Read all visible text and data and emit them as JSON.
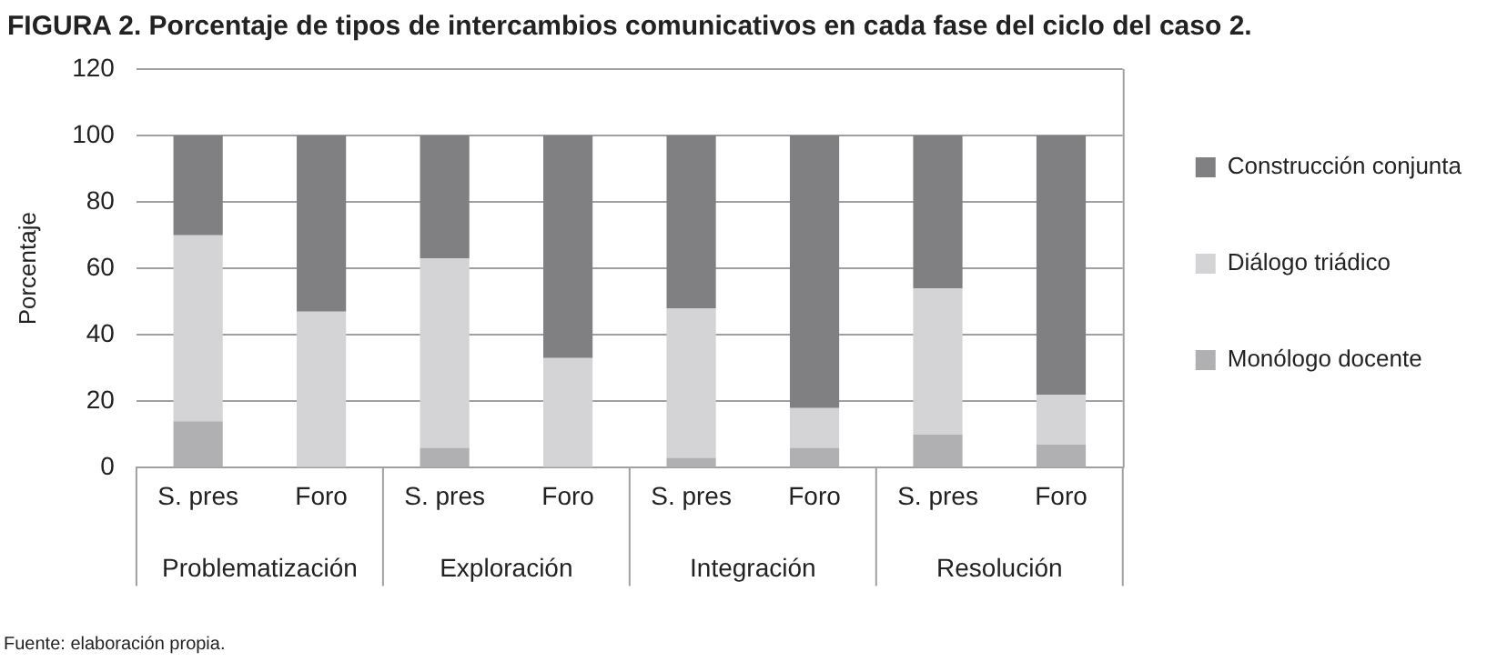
{
  "chart_data": {
    "type": "bar",
    "title": "FIGURA 2. Porcentaje de tipos de intercambios comunicativos en cada fase del ciclo del caso 2.",
    "ylabel": "Porcentaje",
    "categories": [
      "S. pres",
      "Foro",
      "S. pres",
      "Foro",
      "S. pres",
      "Foro",
      "S. pres",
      "Foro"
    ],
    "series": [
      {
        "name": "Monólogo docente",
        "color": "#b0b0b2",
        "values": [
          14,
          0,
          6,
          0,
          3,
          6,
          10,
          7
        ]
      },
      {
        "name": "Diálogo triádico",
        "color": "#d4d4d6",
        "values": [
          56,
          47,
          57,
          33,
          45,
          12,
          44,
          15
        ]
      },
      {
        "name": "Construcción conjunta",
        "color": "#808083",
        "values": [
          30,
          53,
          37,
          67,
          52,
          82,
          46,
          78
        ]
      }
    ],
    "stacked": true,
    "ylim": [
      0,
      120
    ],
    "yticks": [
      0,
      20,
      40,
      60,
      80,
      100,
      120
    ],
    "grid": "y",
    "legend": "right",
    "annotations": [
      "Problematización",
      "Exploración",
      "Integración",
      "Resolución",
      "Fuente: elaboración propia."
    ]
  }
}
